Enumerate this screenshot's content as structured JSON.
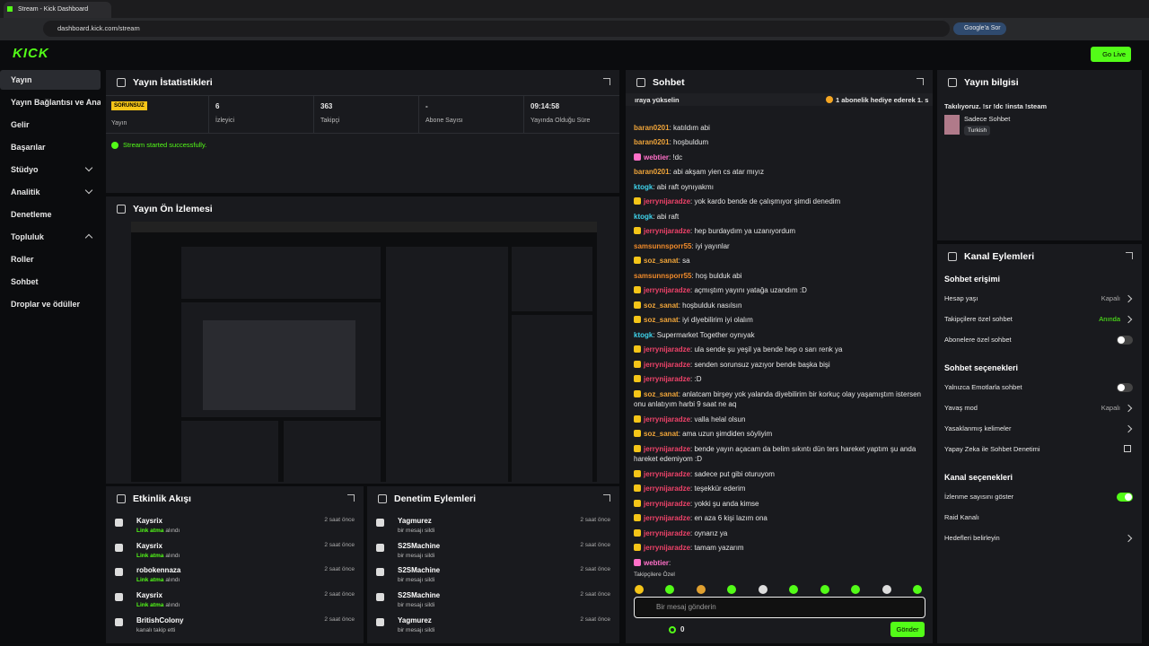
{
  "browser": {
    "tab_title": "Stream - Kick Dashboard",
    "url": "dashboard.kick.com/stream",
    "assistant": "Google'a Sor"
  },
  "header": {
    "logo": "KICK",
    "go_live": "Go Live"
  },
  "sidebar": {
    "items": [
      {
        "label": "Yayın",
        "active": true
      },
      {
        "label": "Yayın Bağlantısı ve Anahtarı"
      },
      {
        "label": "Gelir"
      },
      {
        "label": "Başarılar"
      },
      {
        "label": "Stüdyo",
        "chevron": "down"
      },
      {
        "label": "Analitik",
        "chevron": "down"
      },
      {
        "label": "Denetleme"
      },
      {
        "label": "Topluluk",
        "chevron": "up"
      },
      {
        "label": "Roller"
      },
      {
        "label": "Sohbet"
      },
      {
        "label": "Droplar ve ödüller"
      }
    ]
  },
  "stats": {
    "title": "Yayın İstatistikleri",
    "status": "SORUNSUZ",
    "status_label": "Yayın",
    "items": [
      {
        "value": 6,
        "label": "İzleyici"
      },
      {
        "value": 363,
        "label": "Takipçi"
      },
      {
        "value": "-",
        "label": "Abone Sayısı"
      },
      {
        "value": "09:14:58",
        "label": "Yayında Olduğu Süre"
      }
    ],
    "message": "Stream started successfully."
  },
  "preview": {
    "title": "Yayın Ön İzlemesi"
  },
  "events": {
    "title": "Etkinlik Akışı",
    "items": [
      {
        "user": "Kaysrix",
        "highlight": "Link atma",
        "action": "alındı",
        "time": "2 saat önce"
      },
      {
        "user": "Kaysrix",
        "highlight": "Link atma",
        "action": "alındı",
        "time": "2 saat önce"
      },
      {
        "user": "robokennaza",
        "highlight": "Link atma",
        "action": "alındı",
        "time": "2 saat önce"
      },
      {
        "user": "Kaysrix",
        "highlight": "Link atma",
        "action": "alındı",
        "time": "2 saat önce"
      },
      {
        "user": "BritishColony",
        "action": "kanalı takip etti",
        "time": "2 saat önce"
      }
    ]
  },
  "moderation": {
    "title": "Denetim Eylemleri",
    "items": [
      {
        "user": "Yagmurez",
        "action": "bir mesajı sildi",
        "time": "2 saat önce"
      },
      {
        "user": "S2SMachine",
        "action": "bir mesajı sildi",
        "time": "2 saat önce"
      },
      {
        "user": "S2SMachine",
        "action": "bir mesajı sildi",
        "time": "2 saat önce"
      },
      {
        "user": "S2SMachine",
        "action": "bir mesajı sildi",
        "time": "2 saat önce"
      },
      {
        "user": "Yagmurez",
        "action": "bir mesajı sildi",
        "time": "2 saat önce"
      }
    ]
  },
  "chat": {
    "title": "Sohbet",
    "pinned": "ıraya yükselin",
    "gift": "1 abonelik hediye ederek 1. s",
    "messages": [
      {
        "user": "baran0201",
        "color": "#f0a53a",
        "text": ": katıldım abi"
      },
      {
        "user": "baran0201",
        "color": "#f0a53a",
        "text": ": hoşbuldum"
      },
      {
        "user": "webtier",
        "color": "#ff70c8",
        "badge": "#ff70c8",
        "text": ": !dc"
      },
      {
        "user": "baran0201",
        "color": "#f0a53a",
        "text": ": abi akşam yien cs atar mıyız"
      },
      {
        "user": "ktogk",
        "color": "#3fd2ea",
        "text": ": abi raft oynıyakmı"
      },
      {
        "user": "jerrynijaradze",
        "color": "#f0436a",
        "badge": "#f5c518",
        "text": ": yok kardo bende de çalışmıyor şimdi denedim"
      },
      {
        "user": "ktogk",
        "color": "#3fd2ea",
        "text": ": abi raft"
      },
      {
        "user": "jerrynijaradze",
        "color": "#f0436a",
        "badge": "#f5c518",
        "text": ": hep burdaydım ya uzanıyordum"
      },
      {
        "user": "samsunnsporr55",
        "color": "#f08a2a",
        "text": ": iyi yayınlar"
      },
      {
        "user": "soz_sanat",
        "color": "#f0a53a",
        "badge": "#f5c518",
        "text": ": sa"
      },
      {
        "user": "samsunnsporr55",
        "color": "#f08a2a",
        "text": ": hoş bulduk abi"
      },
      {
        "user": "jerrynijaradze",
        "color": "#f0436a",
        "badge": "#f5c518",
        "text": ": açmıştım yayını yatağa uzandım :D"
      },
      {
        "user": "soz_sanat",
        "color": "#f0a53a",
        "badge": "#f5c518",
        "text": ": hoşbulduk nasılsın"
      },
      {
        "user": "soz_sanat",
        "color": "#f0a53a",
        "badge": "#f5c518",
        "text": ": iyi diyebilirim iyi olalım"
      },
      {
        "user": "ktogk",
        "color": "#3fd2ea",
        "text": ": Supermarket Together oynıyak"
      },
      {
        "user": "jerrynijaradze",
        "color": "#f0436a",
        "badge": "#f5c518",
        "text": ": ula sende şu yeşil ya bende hep o sarı renk ya"
      },
      {
        "user": "jerrynijaradze",
        "color": "#f0436a",
        "badge": "#f5c518",
        "text": ": senden sorunsuz yazıyor bende başka bişi"
      },
      {
        "user": "jerrynijaradze",
        "color": "#f0436a",
        "badge": "#f5c518",
        "text": ": :D"
      },
      {
        "user": "soz_sanat",
        "color": "#f0a53a",
        "badge": "#f5c518",
        "text": ": anlatcam birşey yok yalanda diyebilirim bir korkuç olay yaşamıştım istersen onu anlatıyım harbi 9 saat ne aq"
      },
      {
        "user": "jerrynijaradze",
        "color": "#f0436a",
        "badge": "#f5c518",
        "text": ": valla helal olsun"
      },
      {
        "user": "soz_sanat",
        "color": "#f0a53a",
        "badge": "#f5c518",
        "text": ": ama uzun şimdiden söyliyim"
      },
      {
        "user": "jerrynijaradze",
        "color": "#f0436a",
        "badge": "#f5c518",
        "text": ": bende yayın açacam da belim sıkıntı dün ters hareket yaptım şu anda hareket edemiyom :D"
      },
      {
        "user": "jerrynijaradze",
        "color": "#f0436a",
        "badge": "#f5c518",
        "text": ": sadece put gibi oturuyom"
      },
      {
        "user": "jerrynijaradze",
        "color": "#f0436a",
        "badge": "#f5c518",
        "text": ": teşekkür ederim"
      },
      {
        "user": "jerrynijaradze",
        "color": "#f0436a",
        "badge": "#f5c518",
        "text": ": yokki şu anda kimse"
      },
      {
        "user": "jerrynijaradze",
        "color": "#f0436a",
        "badge": "#f5c518",
        "text": ": en aza 6 kişi lazım ona"
      },
      {
        "user": "jerrynijaradze",
        "color": "#f0436a",
        "badge": "#f5c518",
        "text": ": oynarız ya"
      },
      {
        "user": "jerrynijaradze",
        "color": "#f0436a",
        "badge": "#f5c518",
        "text": ": tamam yazarım"
      },
      {
        "user": "webtier",
        "color": "#ff70c8",
        "badge": "#ff70c8",
        "text": ":"
      }
    ],
    "followers_only": "Takipçilere Özel",
    "placeholder": "Bir mesaj gönderin",
    "count": 0,
    "send": "Gönder"
  },
  "stream_info": {
    "title": "Yayın bilgisi",
    "stream_title": "Takılıyoruz. !sr !dc !insta !steam",
    "category": "Sadece Sohbet",
    "tag": "Turkish"
  },
  "channel_actions": {
    "title": "Kanal Eylemleri",
    "sections": [
      {
        "title": "Sohbet erişimi",
        "rows": [
          {
            "label": "Hesap yaşı",
            "value": "Kapalı",
            "control": "chevron"
          },
          {
            "label": "Takipçilere özel sohbet",
            "value": "Anında",
            "control": "chevron",
            "accent": true
          },
          {
            "label": "Abonelere özel sohbet",
            "control": "toggle",
            "on": false
          }
        ]
      },
      {
        "title": "Sohbet seçenekleri",
        "rows": [
          {
            "label": "Yalnızca Emotlarla sohbet",
            "control": "toggle",
            "on": false
          },
          {
            "label": "Yavaş mod",
            "value": "Kapalı",
            "control": "chevron"
          },
          {
            "label": "Yasaklanmış kelimeler",
            "control": "chevron"
          },
          {
            "label": "Yapay Zeka ile Sohbet Denetimi",
            "control": "external"
          }
        ]
      },
      {
        "title": "Kanal seçenekleri",
        "rows": [
          {
            "label": "İzlenme sayısını göster",
            "control": "toggle",
            "on": true
          },
          {
            "label": "Raid Kanalı"
          },
          {
            "label": "Hedefleri belirleyin",
            "control": "chevron"
          }
        ]
      }
    ]
  }
}
